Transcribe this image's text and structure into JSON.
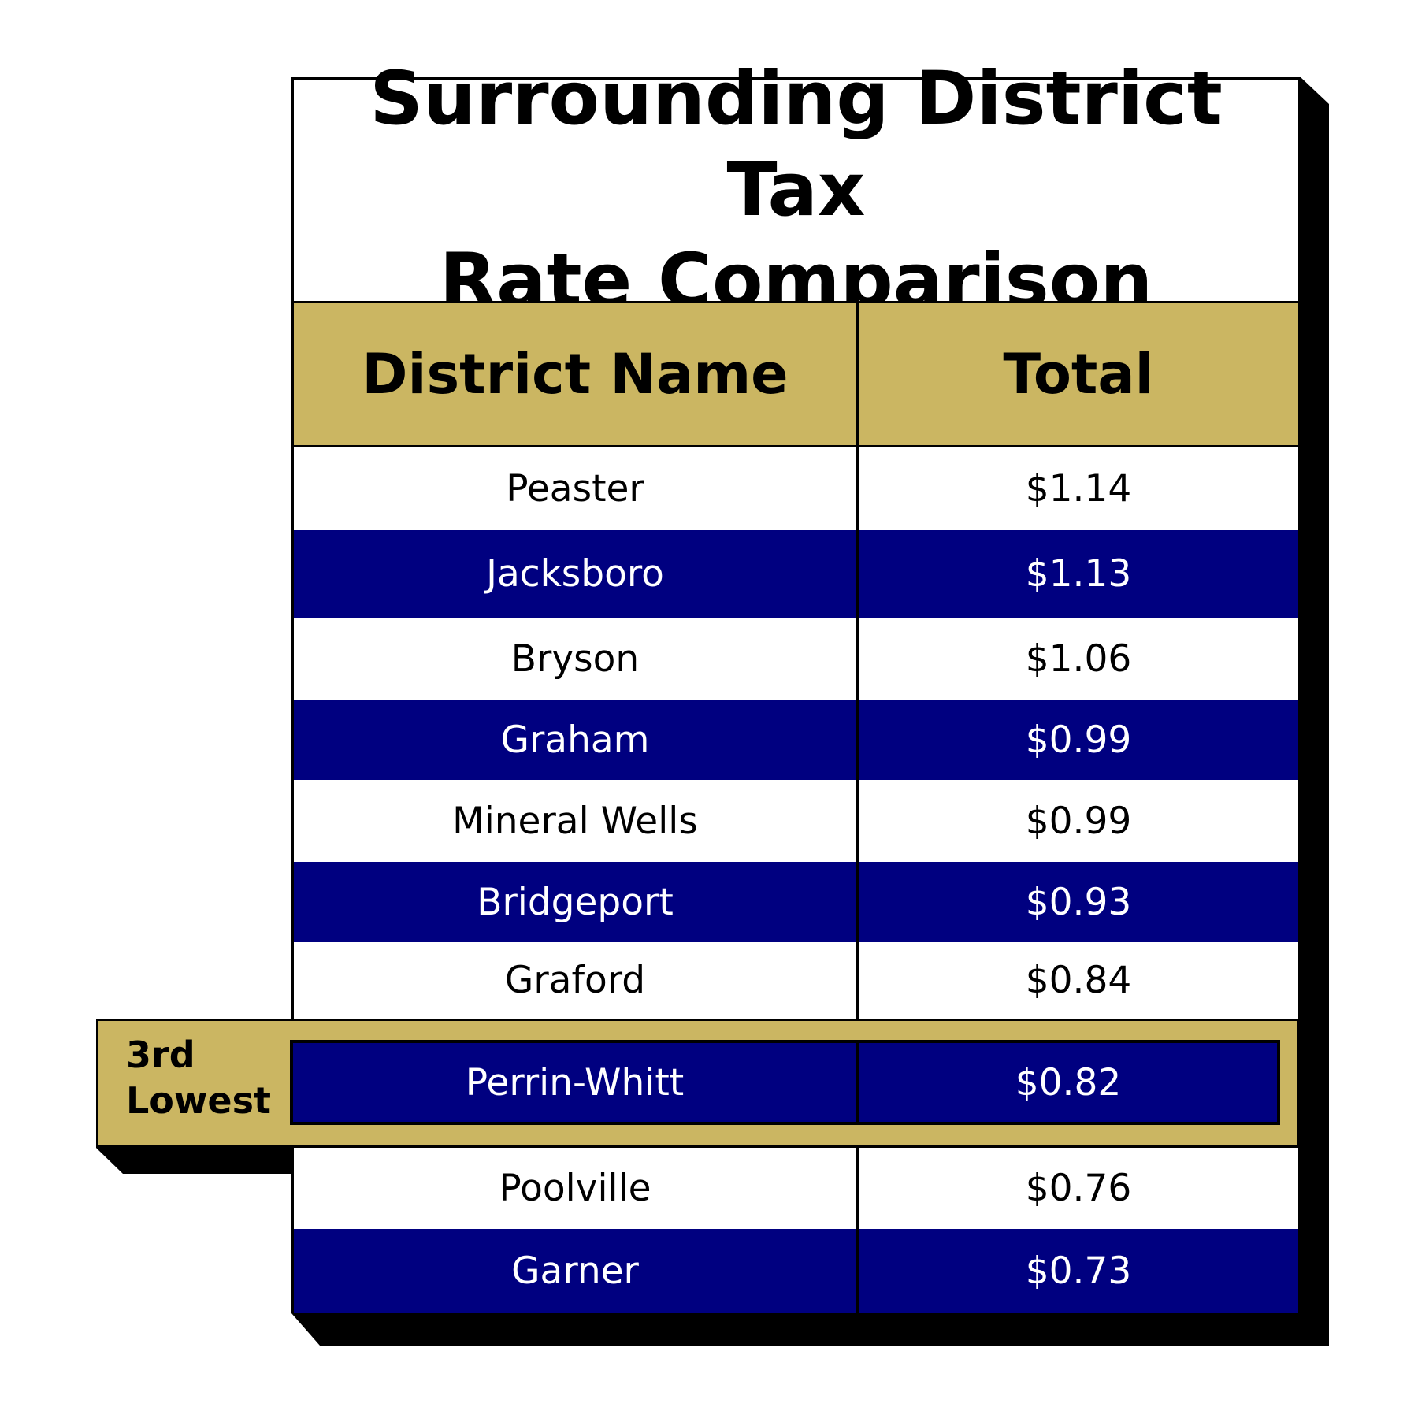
{
  "chart_data": {
    "type": "table",
    "title_lines": [
      "Surrounding District Tax",
      "Rate Comparison"
    ],
    "columns": [
      "District Name",
      "Total"
    ],
    "rows": [
      {
        "district": "Peaster",
        "total": "$1.14"
      },
      {
        "district": "Jacksboro",
        "total": "$1.13"
      },
      {
        "district": "Bryson",
        "total": "$1.06"
      },
      {
        "district": "Graham",
        "total": "$0.99"
      },
      {
        "district": "Mineral Wells",
        "total": "$0.99"
      },
      {
        "district": "Bridgeport",
        "total": "$0.93"
      },
      {
        "district": "Graford",
        "total": "$0.84"
      },
      {
        "district": "Perrin-Whitt",
        "total": "$0.82"
      },
      {
        "district": "Poolville",
        "total": "$0.76"
      },
      {
        "district": "Garner",
        "total": "$0.73"
      }
    ],
    "highlight": {
      "row_index": 7,
      "label_lines": [
        "3rd",
        "Lowest"
      ]
    }
  },
  "colors": {
    "navy": "#000080",
    "gold": "#cbb662",
    "black": "#000000",
    "white": "#ffffff"
  }
}
